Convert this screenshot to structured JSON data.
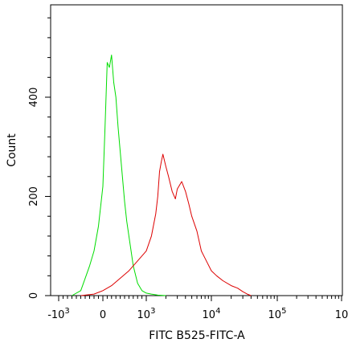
{
  "chart_data": {
    "type": "line",
    "title": "",
    "xlabel": "FITC B525-FITC-A",
    "ylabel": "Count",
    "y_ticks": [
      0,
      200,
      400
    ],
    "ylim": [
      0,
      580
    ],
    "x_scale": "biexponential",
    "x_ticks": [
      {
        "base": "-10",
        "exp": "3"
      },
      {
        "base": "0",
        "exp": ""
      },
      {
        "base": "10",
        "exp": "3"
      },
      {
        "base": "10",
        "exp": "4"
      },
      {
        "base": "10",
        "exp": "5"
      },
      {
        "base": "10",
        "exp": ""
      }
    ],
    "series": [
      {
        "color": "#00dd00",
        "x": [
          -700,
          -500,
          -400,
          -300,
          -200,
          -100,
          0,
          50,
          100,
          150,
          200,
          250,
          300,
          350,
          400,
          450,
          500,
          550,
          600,
          700,
          800,
          900,
          1000,
          1200,
          1500,
          2000
        ],
        "y": [
          0,
          10,
          35,
          60,
          90,
          140,
          220,
          340,
          470,
          460,
          485,
          430,
          400,
          340,
          290,
          240,
          190,
          150,
          120,
          60,
          25,
          10,
          5,
          3,
          1,
          0
        ]
      },
      {
        "color": "#dd0000",
        "x": [
          -500,
          -200,
          0,
          200,
          400,
          600,
          800,
          1000,
          1200,
          1400,
          1500,
          1600,
          1700,
          1800,
          2000,
          2200,
          2500,
          2800,
          3000,
          3500,
          4000,
          4500,
          5000,
          6000,
          7000,
          8000,
          10000,
          12000,
          15000,
          20000,
          25000,
          30000,
          35000,
          40000
        ],
        "y": [
          0,
          3,
          10,
          20,
          35,
          50,
          70,
          90,
          120,
          165,
          200,
          250,
          270,
          285,
          260,
          240,
          210,
          195,
          215,
          230,
          210,
          185,
          160,
          130,
          90,
          75,
          50,
          40,
          30,
          20,
          15,
          8,
          3,
          0
        ]
      }
    ]
  }
}
